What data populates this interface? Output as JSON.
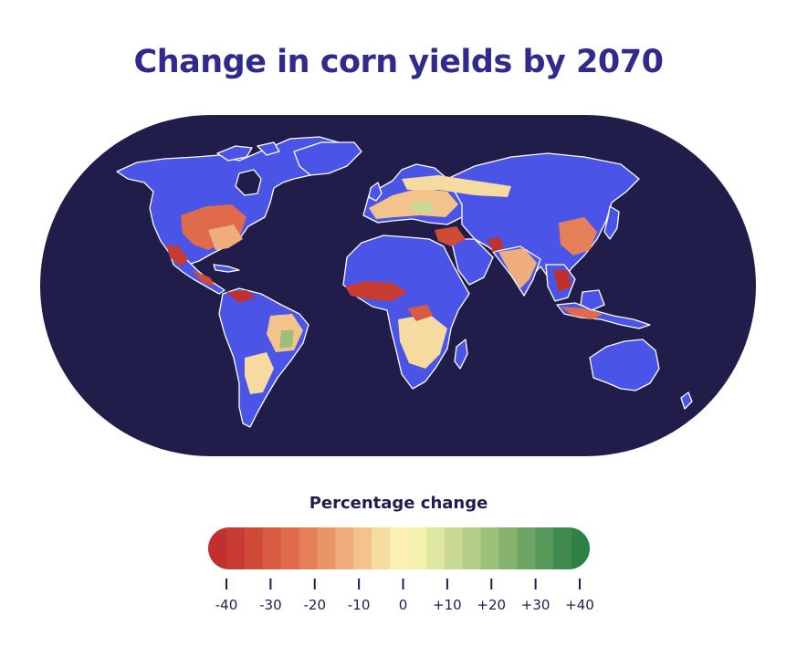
{
  "title": "Change in corn yields by 2070",
  "legend": {
    "title": "Percentage change",
    "min": -40,
    "max": 40,
    "ticks": [
      {
        "value": -40,
        "label": "-40"
      },
      {
        "value": -30,
        "label": "-30"
      },
      {
        "value": -20,
        "label": "-20"
      },
      {
        "value": -10,
        "label": "-10"
      },
      {
        "value": 0,
        "label": "0"
      },
      {
        "value": 10,
        "label": "+10"
      },
      {
        "value": 20,
        "label": "+20"
      },
      {
        "value": 30,
        "label": "+30"
      },
      {
        "value": 40,
        "label": "+40"
      }
    ],
    "swatches": [
      "#c0302f",
      "#c83b33",
      "#d04a38",
      "#d85a41",
      "#df6b4c",
      "#e57f5a",
      "#ea9568",
      "#eead7a",
      "#f2c48c",
      "#f6dba1",
      "#fbf0b2",
      "#f3f1ad",
      "#dfe7a1",
      "#c8da93",
      "#b2cd86",
      "#9cc07a",
      "#85b36e",
      "#6ea564",
      "#57975a",
      "#418a4f",
      "#2f8044"
    ]
  },
  "colors": {
    "ocean": "#211d4b",
    "land_no_data": "#4a55e8",
    "coastline": "#ffffff",
    "title": "#2f2a8c",
    "legend_text": "#201d4f"
  }
}
